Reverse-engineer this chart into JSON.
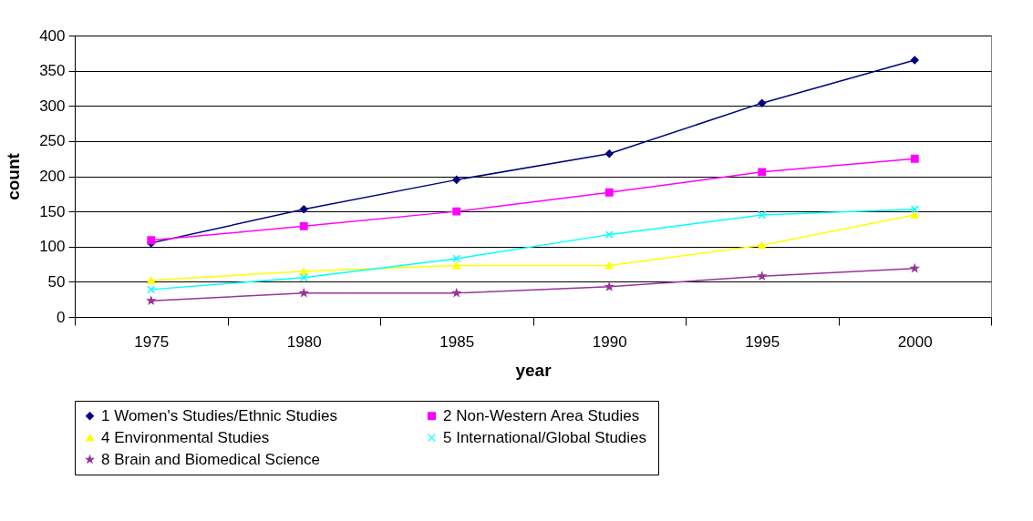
{
  "chart_data": {
    "type": "line",
    "xlabel": "year",
    "ylabel": "count",
    "categories": [
      "1975",
      "1980",
      "1985",
      "1990",
      "1995",
      "2000"
    ],
    "series": [
      {
        "name": "1  Women's Studies/Ethnic Studies",
        "color": "#000080",
        "marker": "diamond",
        "values": [
          105,
          153,
          195,
          232,
          304,
          365
        ]
      },
      {
        "name": "2  Non-Western Area Studies",
        "color": "#ff00ff",
        "marker": "square",
        "values": [
          109,
          129,
          150,
          177,
          206,
          225
        ]
      },
      {
        "name": "4  Environmental Studies",
        "color": "#ffff00",
        "marker": "triangle",
        "values": [
          52,
          65,
          73,
          73,
          102,
          145
        ]
      },
      {
        "name": "5  International/Global Studies",
        "color": "#00ffff",
        "marker": "cross",
        "values": [
          39,
          56,
          83,
          117,
          145,
          153
        ]
      },
      {
        "name": "8 Brain and Biomedical Science",
        "color": "#993399",
        "marker": "star",
        "values": [
          23,
          34,
          34,
          43,
          58,
          69
        ]
      }
    ],
    "ylim": [
      0,
      400
    ],
    "yticks": [
      0,
      50,
      100,
      150,
      200,
      250,
      300,
      350,
      400
    ],
    "grid": "y",
    "legend": "bottom"
  }
}
